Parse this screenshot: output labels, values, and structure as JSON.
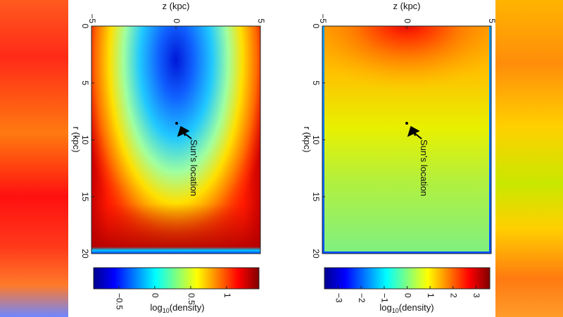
{
  "chart_data": [
    {
      "type": "heatmap",
      "xlabel": "z (kpc)",
      "ylabel": "r (kpc)",
      "x_ticks": [
        "−5",
        "0",
        "5"
      ],
      "y_ticks": [
        "0",
        "5",
        "10",
        "15",
        "20"
      ],
      "xlim": [
        -5,
        5
      ],
      "ylim": [
        0,
        20
      ],
      "annotation": {
        "text": "Sun's location",
        "r": 8.5,
        "z": 0
      },
      "colorbar": {
        "label_base": "log",
        "label_sub": "10",
        "label_rest": "(density)",
        "ticks": [
          "−0.5",
          "0",
          "0.5",
          "1"
        ],
        "tick_values": [
          -0.5,
          0,
          0.5,
          1
        ],
        "range": [
          -0.85,
          1.45
        ]
      },
      "colormap": [
        "#00008f",
        "#0000ff",
        "#00ffff",
        "#ffff00",
        "#ff0000",
        "#800000"
      ]
    },
    {
      "type": "heatmap",
      "xlabel": "z (kpc)",
      "ylabel": "r (kpc)",
      "x_ticks": [
        "−5",
        "0",
        "5"
      ],
      "y_ticks": [
        "0",
        "5",
        "10",
        "15",
        "20"
      ],
      "xlim": [
        -5,
        5
      ],
      "ylim": [
        0,
        20
      ],
      "annotation": {
        "text": "Sun's location",
        "r": 8.5,
        "z": 0
      },
      "colorbar": {
        "label_base": "log",
        "label_sub": "10",
        "label_rest": "(density)",
        "ticks": [
          "−3",
          "−2",
          "−1",
          "0",
          "1",
          "2",
          "3"
        ],
        "tick_values": [
          -3,
          -2,
          -1,
          0,
          1,
          2,
          3
        ],
        "range": [
          -3.6,
          3.6
        ]
      },
      "colormap": [
        "#00008f",
        "#0000ff",
        "#00ffff",
        "#ffff00",
        "#ff0000",
        "#800000"
      ]
    }
  ]
}
